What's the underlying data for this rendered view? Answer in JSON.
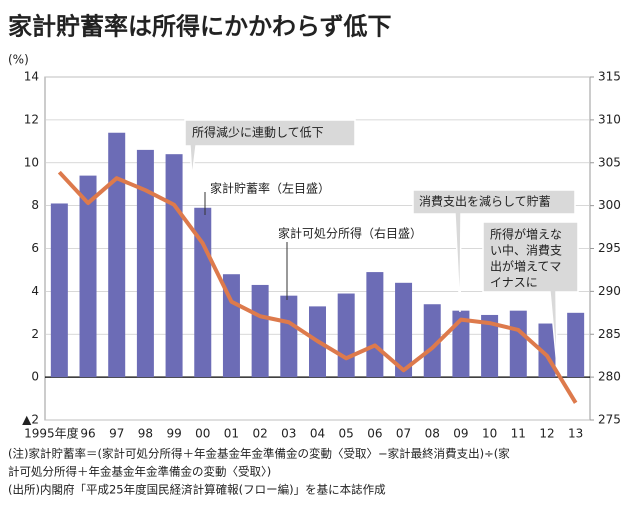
{
  "chart_data": {
    "type": "bar_line",
    "title": "家計貯蓄率は所得にかかわらず低下",
    "y_axis_label": "(%)",
    "categories": [
      "1995年度",
      "96",
      "97",
      "98",
      "99",
      "00",
      "01",
      "02",
      "03",
      "04",
      "05",
      "06",
      "07",
      "08",
      "09",
      "10",
      "11",
      "12",
      "13"
    ],
    "series": [
      {
        "name": "家計貯蓄率（左目盛）",
        "type": "bar",
        "color": "#6c6cb6",
        "axis": "y",
        "values": [
          8.1,
          9.4,
          11.4,
          10.6,
          10.4,
          7.9,
          4.8,
          4.3,
          3.8,
          3.3,
          3.9,
          4.9,
          4.4,
          3.4,
          3.1,
          2.9,
          3.1,
          2.5,
          3.0
        ]
      },
      {
        "name": "家計可処分所得（右目盛）",
        "type": "line",
        "color": "#dd7a4c",
        "axis": "y2",
        "values": [
          303.9,
          300.3,
          303.2,
          301.8,
          300.1,
          295.6,
          288.8,
          287.1,
          286.4,
          284.2,
          282.2,
          283.7,
          280.8,
          283.4,
          286.7,
          286.3,
          285.5,
          282.5,
          277.0
        ]
      }
    ],
    "ylim": [
      -2,
      14
    ],
    "yticks": [
      {
        "value": -2,
        "label": "▲2"
      },
      0,
      2,
      4,
      6,
      8,
      10,
      12,
      14
    ],
    "y2lim": [
      275,
      315
    ],
    "y2ticks": [
      275,
      280,
      285,
      290,
      295,
      300,
      305,
      310,
      315
    ],
    "grid": true,
    "annotations": [
      "所得減少に連動して低下",
      "消費支出を減らして貯蓄",
      [
        "所得が増えな",
        "い中、消費支",
        "出が増えてマ",
        "イナスに"
      ]
    ],
    "notes": [
      "(注)家計貯蓄率＝(家計可処分所得＋年金基金年金準備金の変動〈受取〉−家計最終消費支出)÷(家",
      "計可処分所得＋年金基金年金準備金の変動〈受取〉)",
      "(出所)内閣府「平成25年度国民経済計算確報(フロー編)」を基に本誌作成"
    ]
  }
}
